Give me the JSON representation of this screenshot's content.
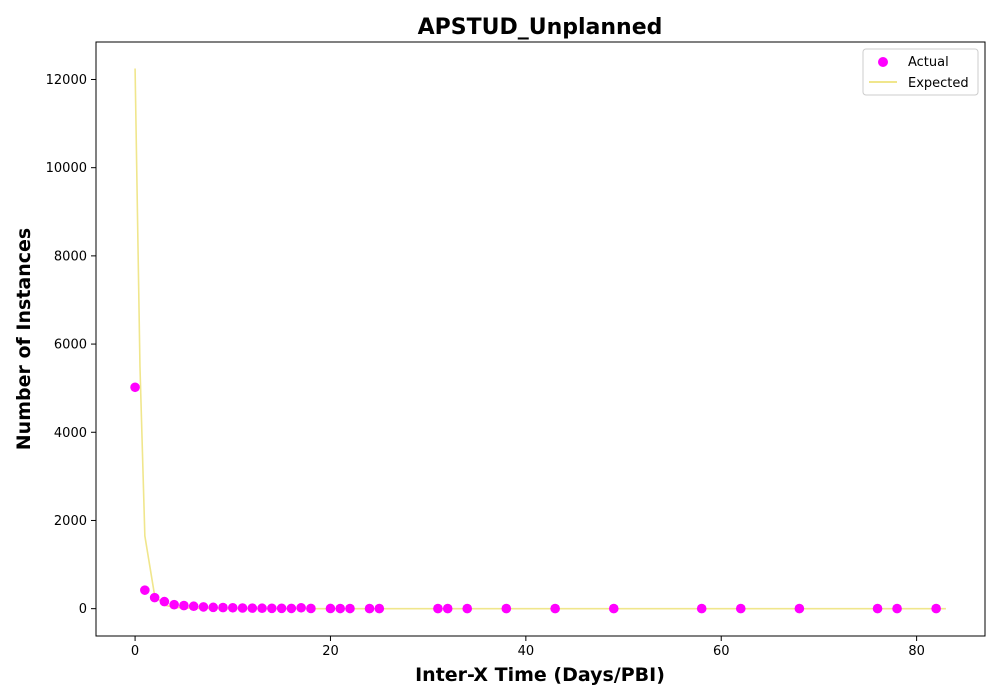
{
  "chart_data": {
    "type": "scatter",
    "title": "APSTUD_Unplanned",
    "xlabel": "Inter-X Time (Days/PBI)",
    "ylabel": "Number of Instances",
    "xlim": [
      -4,
      87
    ],
    "ylim": [
      -620,
      12850
    ],
    "xticks": [
      0,
      20,
      40,
      60,
      80
    ],
    "yticks": [
      0,
      2000,
      4000,
      6000,
      8000,
      10000,
      12000
    ],
    "grid": false,
    "legend_position": "top-right",
    "colors": {
      "actual": "#ff00ff",
      "expected": "#f0e68c"
    },
    "series": [
      {
        "name": "Actual",
        "kind": "scatter",
        "x": [
          0,
          1,
          2,
          3,
          4,
          5,
          6,
          7,
          8,
          9,
          10,
          11,
          12,
          13,
          14,
          15,
          16,
          17,
          18,
          20,
          21,
          22,
          24,
          25,
          31,
          32,
          34,
          38,
          43,
          49,
          58,
          62,
          68,
          76,
          78,
          82
        ],
        "y": [
          5020,
          420,
          250,
          160,
          90,
          70,
          55,
          40,
          30,
          25,
          20,
          15,
          12,
          10,
          8,
          8,
          6,
          20,
          5,
          4,
          3,
          3,
          2,
          2,
          2,
          2,
          2,
          2,
          2,
          2,
          2,
          2,
          2,
          2,
          2,
          2
        ]
      },
      {
        "name": "Expected",
        "kind": "line",
        "x": [
          0,
          0.5,
          1,
          2,
          3,
          4,
          5,
          6,
          8,
          10,
          15,
          20,
          30,
          40,
          60,
          83
        ],
        "y": [
          12250,
          5500,
          1650,
          300,
          80,
          30,
          15,
          8,
          4,
          2,
          1,
          0,
          0,
          0,
          0,
          0
        ]
      }
    ]
  }
}
